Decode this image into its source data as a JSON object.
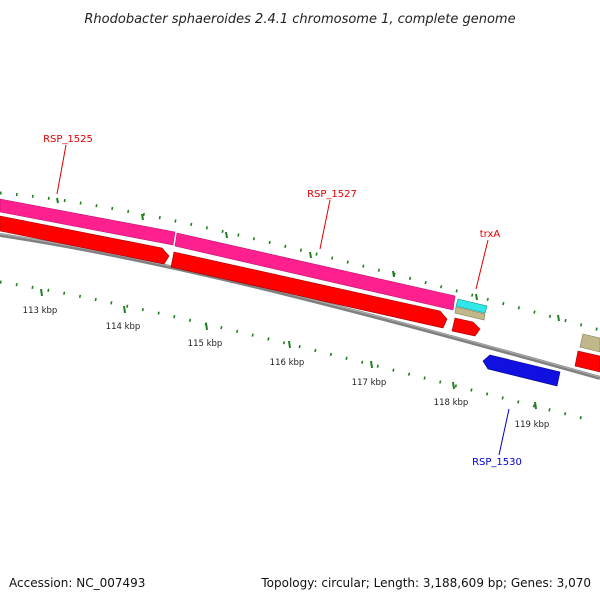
{
  "title": "Rhodobacter sphaeroides 2.4.1 chromosome 1, complete genome",
  "footer": {
    "accession": "Accession: NC_007493",
    "summary": "Topology: circular; Length: 3,188,609 bp; Genes: 3,070"
  },
  "scale_labels": [
    "113 kbp",
    "114 kbp",
    "115 kbp",
    "116 kbp",
    "117 kbp",
    "118 kbp",
    "119 kbp"
  ],
  "gene_labels": {
    "rsp1525": "RSP_1525",
    "rsp1527": "RSP_1527",
    "trxa": "trxA",
    "rsp1530": "RSP_1530"
  },
  "colors": {
    "backbone": "#808080",
    "cds_forward": "#ff0000",
    "gene_forward": "#ff2090",
    "cds_reverse": "#1010e0",
    "trxa_gene": "#30e8e8",
    "trxa_cds": "#c0b888",
    "tick": "#208020",
    "label_forward": "#e00000",
    "label_reverse": "#0000cc"
  }
}
